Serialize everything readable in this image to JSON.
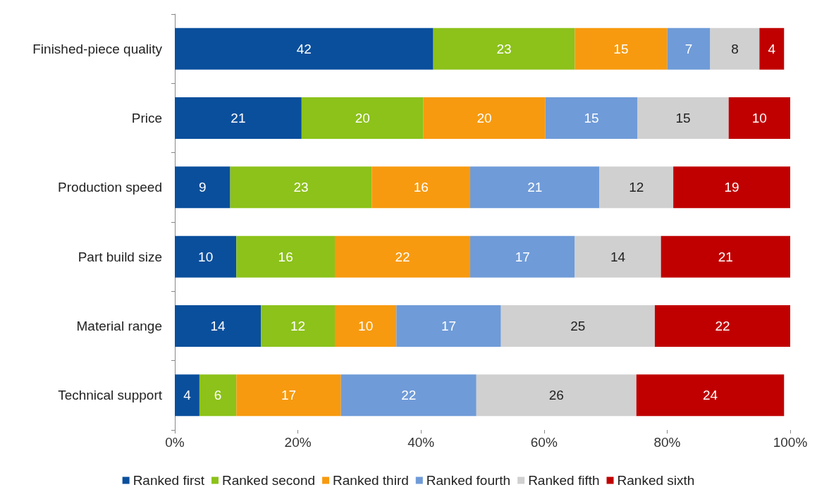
{
  "chart_data": {
    "type": "bar",
    "orientation": "horizontal",
    "stacked": true,
    "legend": "bottom",
    "grid": false,
    "categories": [
      "Finished-piece quality",
      "Price",
      "Production speed",
      "Part build size",
      "Material range",
      "Technical support"
    ],
    "series": [
      {
        "name": "Ranked first",
        "color": "#0a4f9c",
        "values": [
          42,
          20.6,
          9,
          10,
          14,
          4
        ],
        "value_labels": [
          "42",
          "21",
          "9",
          "10",
          "14",
          "4"
        ]
      },
      {
        "name": "Ranked second",
        "color": "#8cc21a",
        "values": [
          23,
          19.8,
          23,
          16,
          12,
          6
        ],
        "value_labels": [
          "23",
          "20",
          "23",
          "16",
          "12",
          "6"
        ]
      },
      {
        "name": "Ranked third",
        "color": "#f79a0f",
        "values": [
          15,
          19.8,
          16,
          22,
          10,
          17
        ],
        "value_labels": [
          "15",
          "20",
          "16",
          "22",
          "10",
          "17"
        ]
      },
      {
        "name": "Ranked fourth",
        "color": "#6f9bd8",
        "values": [
          7,
          15,
          21,
          17,
          17,
          22
        ],
        "value_labels": [
          "7",
          "15",
          "21",
          "17",
          "17",
          "22"
        ]
      },
      {
        "name": "Ranked fifth",
        "color": "#d0d0d0",
        "values": [
          8,
          14.8,
          12,
          14,
          25,
          26
        ],
        "value_labels": [
          "8",
          "15",
          "12",
          "14",
          "25",
          "26"
        ]
      },
      {
        "name": "Ranked sixth",
        "color": "#c00000",
        "values": [
          4,
          10,
          19,
          21,
          22,
          24
        ],
        "value_labels": [
          "4",
          "10",
          "19",
          "21",
          "22",
          "24"
        ]
      }
    ],
    "xlim": [
      0,
      100
    ],
    "xticks": [
      {
        "value": 0,
        "label": "0%"
      },
      {
        "value": 20,
        "label": "20%"
      },
      {
        "value": 40,
        "label": "40%"
      },
      {
        "value": 60,
        "label": "60%"
      },
      {
        "value": 80,
        "label": "80%"
      },
      {
        "value": 100,
        "label": "100%"
      }
    ]
  }
}
